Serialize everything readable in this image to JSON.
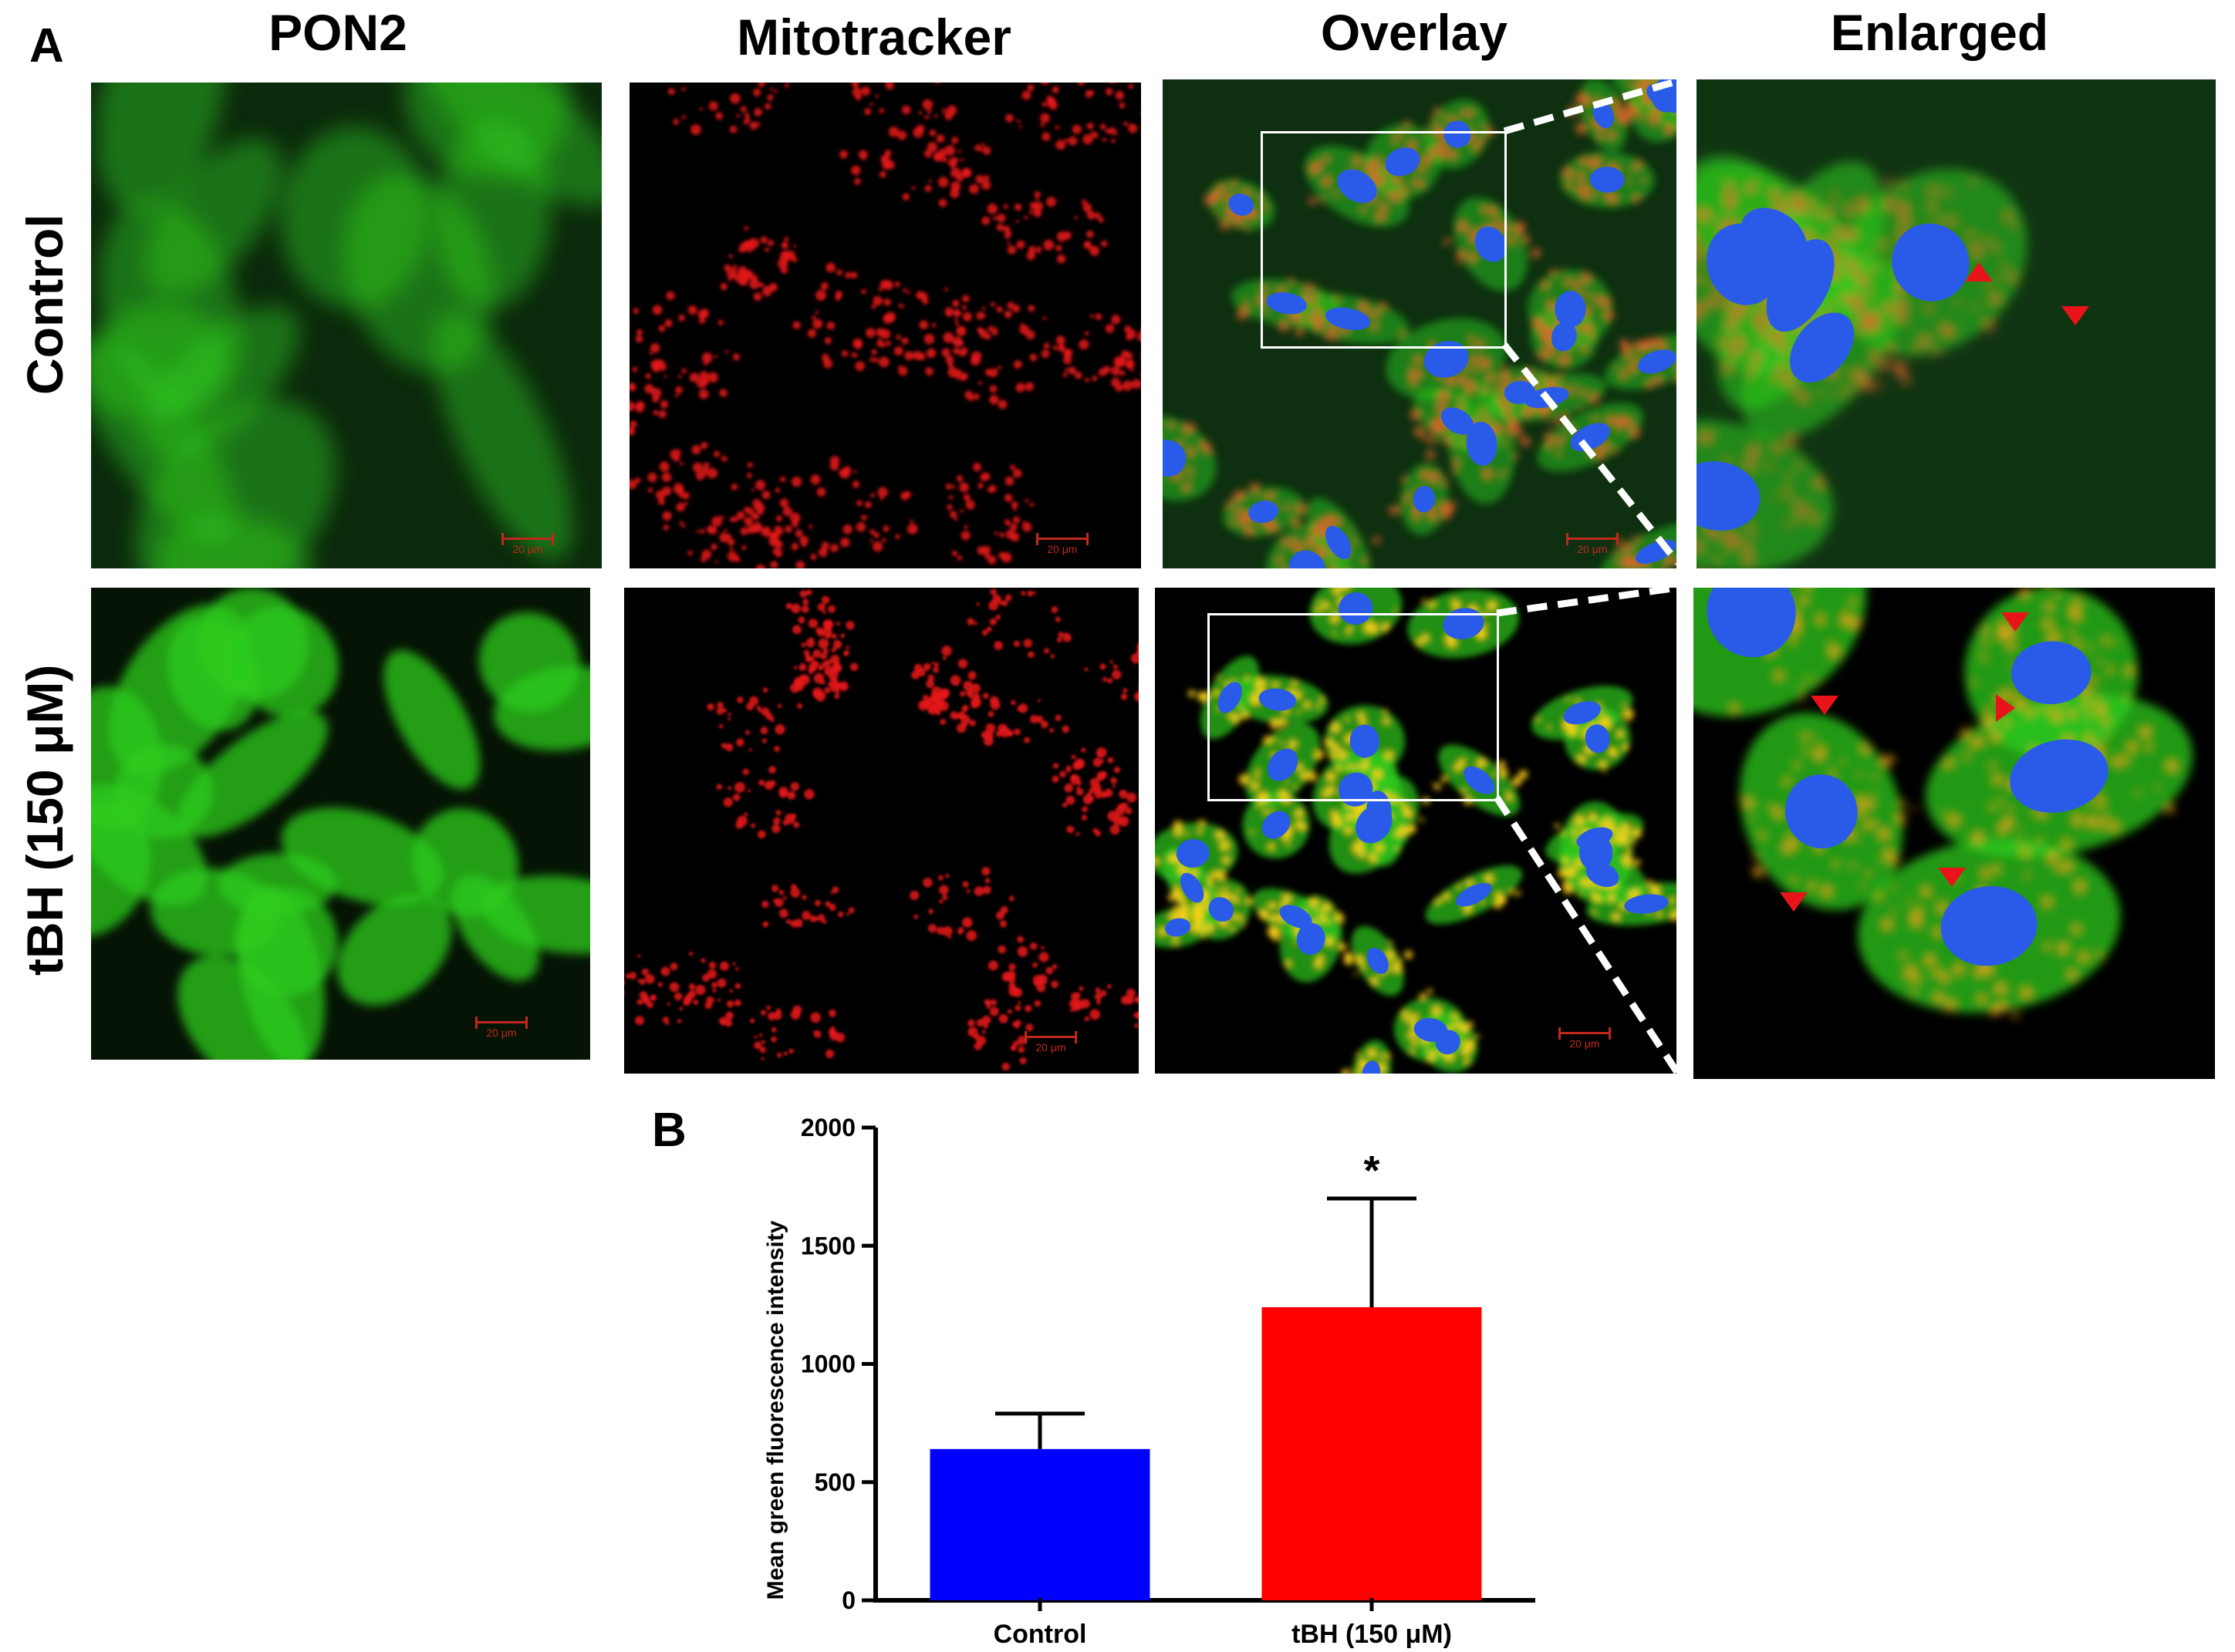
{
  "figure": {
    "panel_a_label": "A",
    "panel_b_label": "B",
    "columns": [
      "PON2",
      "Mitotracker",
      "Overlay",
      "Enlarged"
    ],
    "rows": [
      "Control",
      "tBH (150 μM)"
    ],
    "scale_bar_label": "20 μm",
    "colors": {
      "pon2": "#2ecc1e",
      "mitotracker": "#e8141a",
      "nucleus": "#2a5be8",
      "colocalization": "#ffd21a",
      "arrowhead": "#e8141a"
    }
  },
  "chart_data": {
    "type": "bar",
    "categories": [
      "Control",
      "tBH (150 μM)"
    ],
    "values": [
      640,
      1240
    ],
    "error": [
      150,
      460
    ],
    "bar_colors": [
      "#0000ff",
      "#ff0000"
    ],
    "xlabel": "",
    "ylabel": "Mean green fluorescence intensity",
    "ylim": [
      0,
      2000
    ],
    "yticks": [
      0,
      500,
      1000,
      1500,
      2000
    ],
    "annotations": [
      {
        "category": "tBH (150 μM)",
        "text": "*"
      }
    ],
    "grid": false
  }
}
